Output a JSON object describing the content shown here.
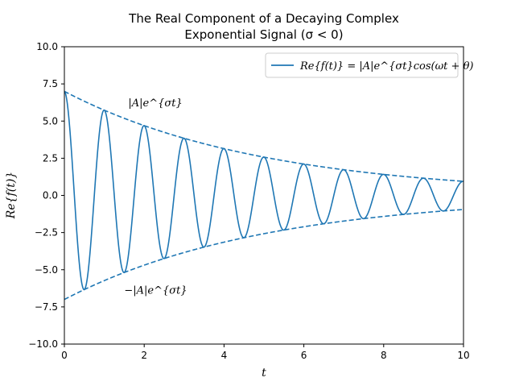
{
  "chart_data": {
    "type": "line",
    "title_line1": "The Real Component of a Decaying Complex",
    "title_line2": "Exponential Signal (σ < 0)",
    "xlabel": "t",
    "ylabel": "Re{f(t)}",
    "xlim": [
      0,
      10
    ],
    "ylim": [
      -10,
      10
    ],
    "xticks": [
      0,
      2,
      4,
      6,
      8,
      10
    ],
    "xtick_labels": [
      "0",
      "2",
      "4",
      "6",
      "8",
      "10"
    ],
    "yticks": [
      -10,
      -7.5,
      -5,
      -2.5,
      0,
      2.5,
      5,
      7.5,
      10
    ],
    "ytick_labels": [
      "−10.0",
      "−7.5",
      "−5.0",
      "−2.5",
      "0.0",
      "2.5",
      "5.0",
      "7.5",
      "10.0"
    ],
    "grid": false,
    "legend_position": "top-right",
    "color": "#1f77b4",
    "series": [
      {
        "name": "Re{f(t)} = |A|e^{σt}cos(ωt + θ)",
        "style": "solid",
        "amplitude": 7.0,
        "sigma": -0.2,
        "omega": 6.283,
        "theta": 0,
        "x_range": [
          0,
          10
        ]
      },
      {
        "name": "|A|e^{σt}",
        "style": "dashed",
        "amplitude": 7.0,
        "sigma": -0.2,
        "x_range": [
          0,
          10
        ]
      },
      {
        "name": "−|A|e^{σt}",
        "style": "dashed",
        "amplitude": -7.0,
        "sigma": -0.2,
        "x_range": [
          0,
          10
        ]
      }
    ],
    "annotations": [
      {
        "text": "|A|e^{σt}",
        "x": 1.6,
        "y": 6.0
      },
      {
        "text": "−|A|e^{σt}",
        "x": 1.5,
        "y": -6.6
      }
    ]
  }
}
